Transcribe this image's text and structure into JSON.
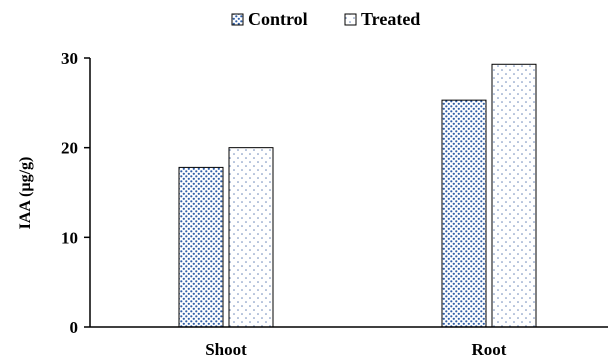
{
  "chart_data": {
    "type": "bar",
    "categories": [
      "Shoot",
      "Root"
    ],
    "series": [
      {
        "name": "Control",
        "values": [
          17.8,
          25.3
        ],
        "pattern": "dense-dots",
        "color": "#2f5fa8"
      },
      {
        "name": "Treated",
        "values": [
          20.0,
          29.3
        ],
        "pattern": "sparse-dots",
        "color": "#6a86b8"
      }
    ],
    "title": "",
    "xlabel": "",
    "ylabel": "IAA (µg/g)",
    "ylim": [
      0,
      30
    ],
    "yticks": [
      0,
      10,
      20,
      30
    ],
    "grid": false,
    "legend": "top-center"
  }
}
